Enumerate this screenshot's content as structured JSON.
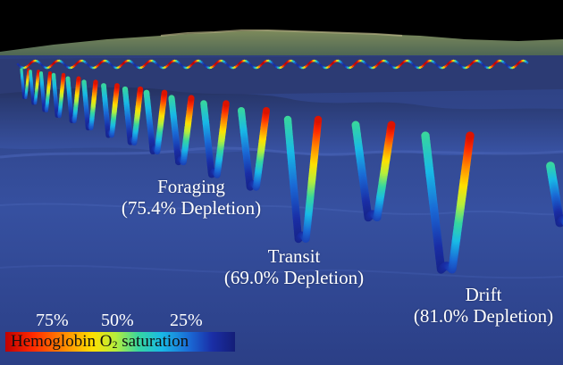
{
  "labels": {
    "foraging": {
      "phase": "Foraging",
      "depletion": "(75.4% Depletion)"
    },
    "transit": {
      "phase": "Transit",
      "depletion": "(69.0% Depletion)"
    },
    "drift": {
      "phase": "Drift",
      "depletion": "(81.0% Depletion)"
    }
  },
  "legend": {
    "ticks": [
      "75%",
      "50%",
      "25%"
    ],
    "title_prefix": "Hemoglobin O",
    "title_sub": "2",
    "title_suffix": " saturation",
    "colors": [
      "#c00000",
      "#ff2a00",
      "#ff8c00",
      "#ffe000",
      "#b6ee3c",
      "#36d6a0",
      "#19b9e6",
      "#1a6ad6",
      "#1a2ea6",
      "#141e78"
    ]
  }
}
